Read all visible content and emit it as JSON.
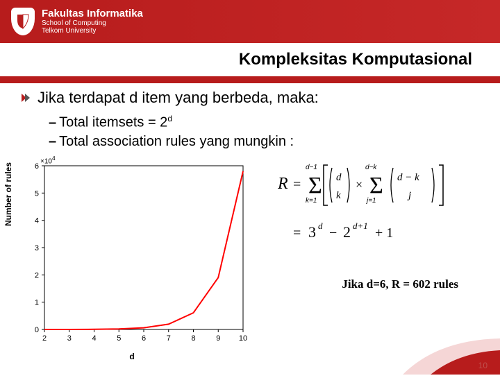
{
  "header": {
    "fakultas": "Fakultas Informatika",
    "school": "School of Computing",
    "univ": "Telkom University"
  },
  "title": "Kompleksitas Komputasional",
  "bullet": "Jika terdapat d item yang berbeda, maka:",
  "sub1_prefix": "Total  itemsets = 2",
  "sub1_sup": "d",
  "sub2": "Total association rules yang mungkin :",
  "note": "Jika d=6,  R = 602 rules",
  "chart": {
    "ylabel": "Number of rules",
    "xlabel": "d",
    "yscale_exp": "×10",
    "yscale_pow": "4",
    "x_ticks": [
      2,
      3,
      4,
      5,
      6,
      7,
      8,
      9,
      10
    ],
    "y_ticks": [
      0,
      1,
      2,
      3,
      4,
      5,
      6
    ],
    "line_color": "#ff0000",
    "axis_color": "#000000",
    "points": [
      {
        "x": 2,
        "y": 0.0002
      },
      {
        "x": 3,
        "y": 0.0012
      },
      {
        "x": 4,
        "y": 0.005
      },
      {
        "x": 5,
        "y": 0.018
      },
      {
        "x": 6,
        "y": 0.0602
      },
      {
        "x": 7,
        "y": 0.193
      },
      {
        "x": 8,
        "y": 0.61
      },
      {
        "x": 9,
        "y": 1.902
      },
      {
        "x": 10,
        "y": 5.8
      }
    ],
    "xlim": [
      2,
      10
    ],
    "ylim": [
      0,
      6
    ]
  },
  "formula": {
    "line1": "R = Σ Σ [ C(d,k) × C(d−k, j) ]",
    "k_range": "k=1..d−1",
    "j_range": "j=1..d−k",
    "line2": "= 3^d − 2^(d+1) + 1"
  },
  "page_number": "10",
  "colors": {
    "header_bg": "#b71c1c",
    "stripe": "#b71c1c",
    "footer_red": "#b71c1c",
    "footer_light": "#f5d6d6",
    "page_num": "#c0504d"
  }
}
